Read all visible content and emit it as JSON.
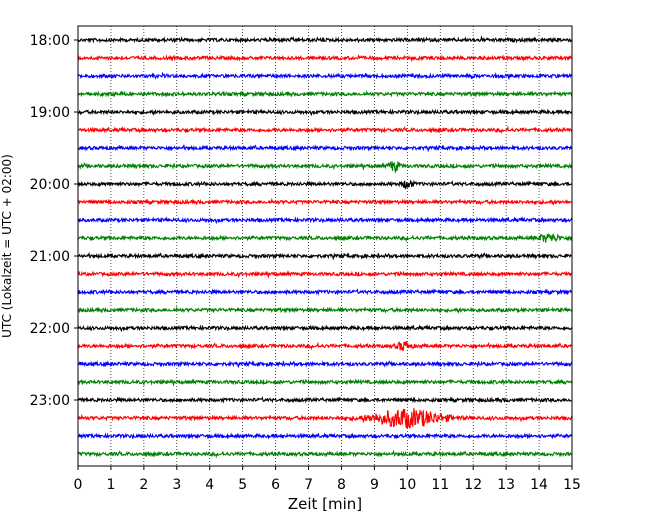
{
  "chart_data": {
    "type": "line",
    "title": "",
    "xlabel": "Zeit  [min]",
    "ylabel": "UTC (Lokalzeit = UTC + 02:00)",
    "xlim": [
      0,
      15
    ],
    "x_ticks": [
      "0",
      "1",
      "2",
      "3",
      "4",
      "5",
      "6",
      "7",
      "8",
      "9",
      "10",
      "11",
      "12",
      "13",
      "14",
      "15"
    ],
    "y_ticks": [
      "18:00",
      "19:00",
      "20:00",
      "21:00",
      "22:00",
      "23:00"
    ],
    "grid": "vertical-dotted",
    "trace_interval_minutes": 15,
    "trace_color_cycle": [
      "#000000",
      "#ff0000",
      "#0000ff",
      "#008000"
    ],
    "traces": [
      {
        "start": "18:00",
        "color": "#000000",
        "events": []
      },
      {
        "start": "18:15",
        "color": "#ff0000",
        "events": []
      },
      {
        "start": "18:30",
        "color": "#0000ff",
        "events": []
      },
      {
        "start": "18:45",
        "color": "#008000",
        "events": []
      },
      {
        "start": "19:00",
        "color": "#000000",
        "events": []
      },
      {
        "start": "19:15",
        "color": "#ff0000",
        "events": []
      },
      {
        "start": "19:30",
        "color": "#0000ff",
        "events": []
      },
      {
        "start": "19:45",
        "color": "#008000",
        "events": [
          {
            "t": 9.6,
            "a": 2.5,
            "w": 0.15
          }
        ]
      },
      {
        "start": "20:00",
        "color": "#000000",
        "events": [
          {
            "t": 10.0,
            "a": 2.0,
            "w": 0.15
          }
        ]
      },
      {
        "start": "20:15",
        "color": "#ff0000",
        "events": []
      },
      {
        "start": "20:30",
        "color": "#0000ff",
        "events": []
      },
      {
        "start": "20:45",
        "color": "#008000",
        "events": [
          {
            "t": 14.3,
            "a": 1.8,
            "w": 0.3
          }
        ]
      },
      {
        "start": "21:00",
        "color": "#000000",
        "events": []
      },
      {
        "start": "21:15",
        "color": "#ff0000",
        "events": []
      },
      {
        "start": "21:30",
        "color": "#0000ff",
        "events": []
      },
      {
        "start": "21:45",
        "color": "#008000",
        "events": []
      },
      {
        "start": "22:00",
        "color": "#000000",
        "events": []
      },
      {
        "start": "22:15",
        "color": "#ff0000",
        "events": [
          {
            "t": 9.9,
            "a": 2.2,
            "w": 0.2
          }
        ]
      },
      {
        "start": "22:30",
        "color": "#0000ff",
        "events": []
      },
      {
        "start": "22:45",
        "color": "#008000",
        "events": []
      },
      {
        "start": "23:00",
        "color": "#000000",
        "events": []
      },
      {
        "start": "23:15",
        "color": "#ff0000",
        "events": [
          {
            "t": 10.0,
            "a": 4.5,
            "w": 1.0
          }
        ]
      },
      {
        "start": "23:30",
        "color": "#0000ff",
        "events": []
      },
      {
        "start": "23:45",
        "color": "#008000",
        "events": []
      }
    ]
  }
}
